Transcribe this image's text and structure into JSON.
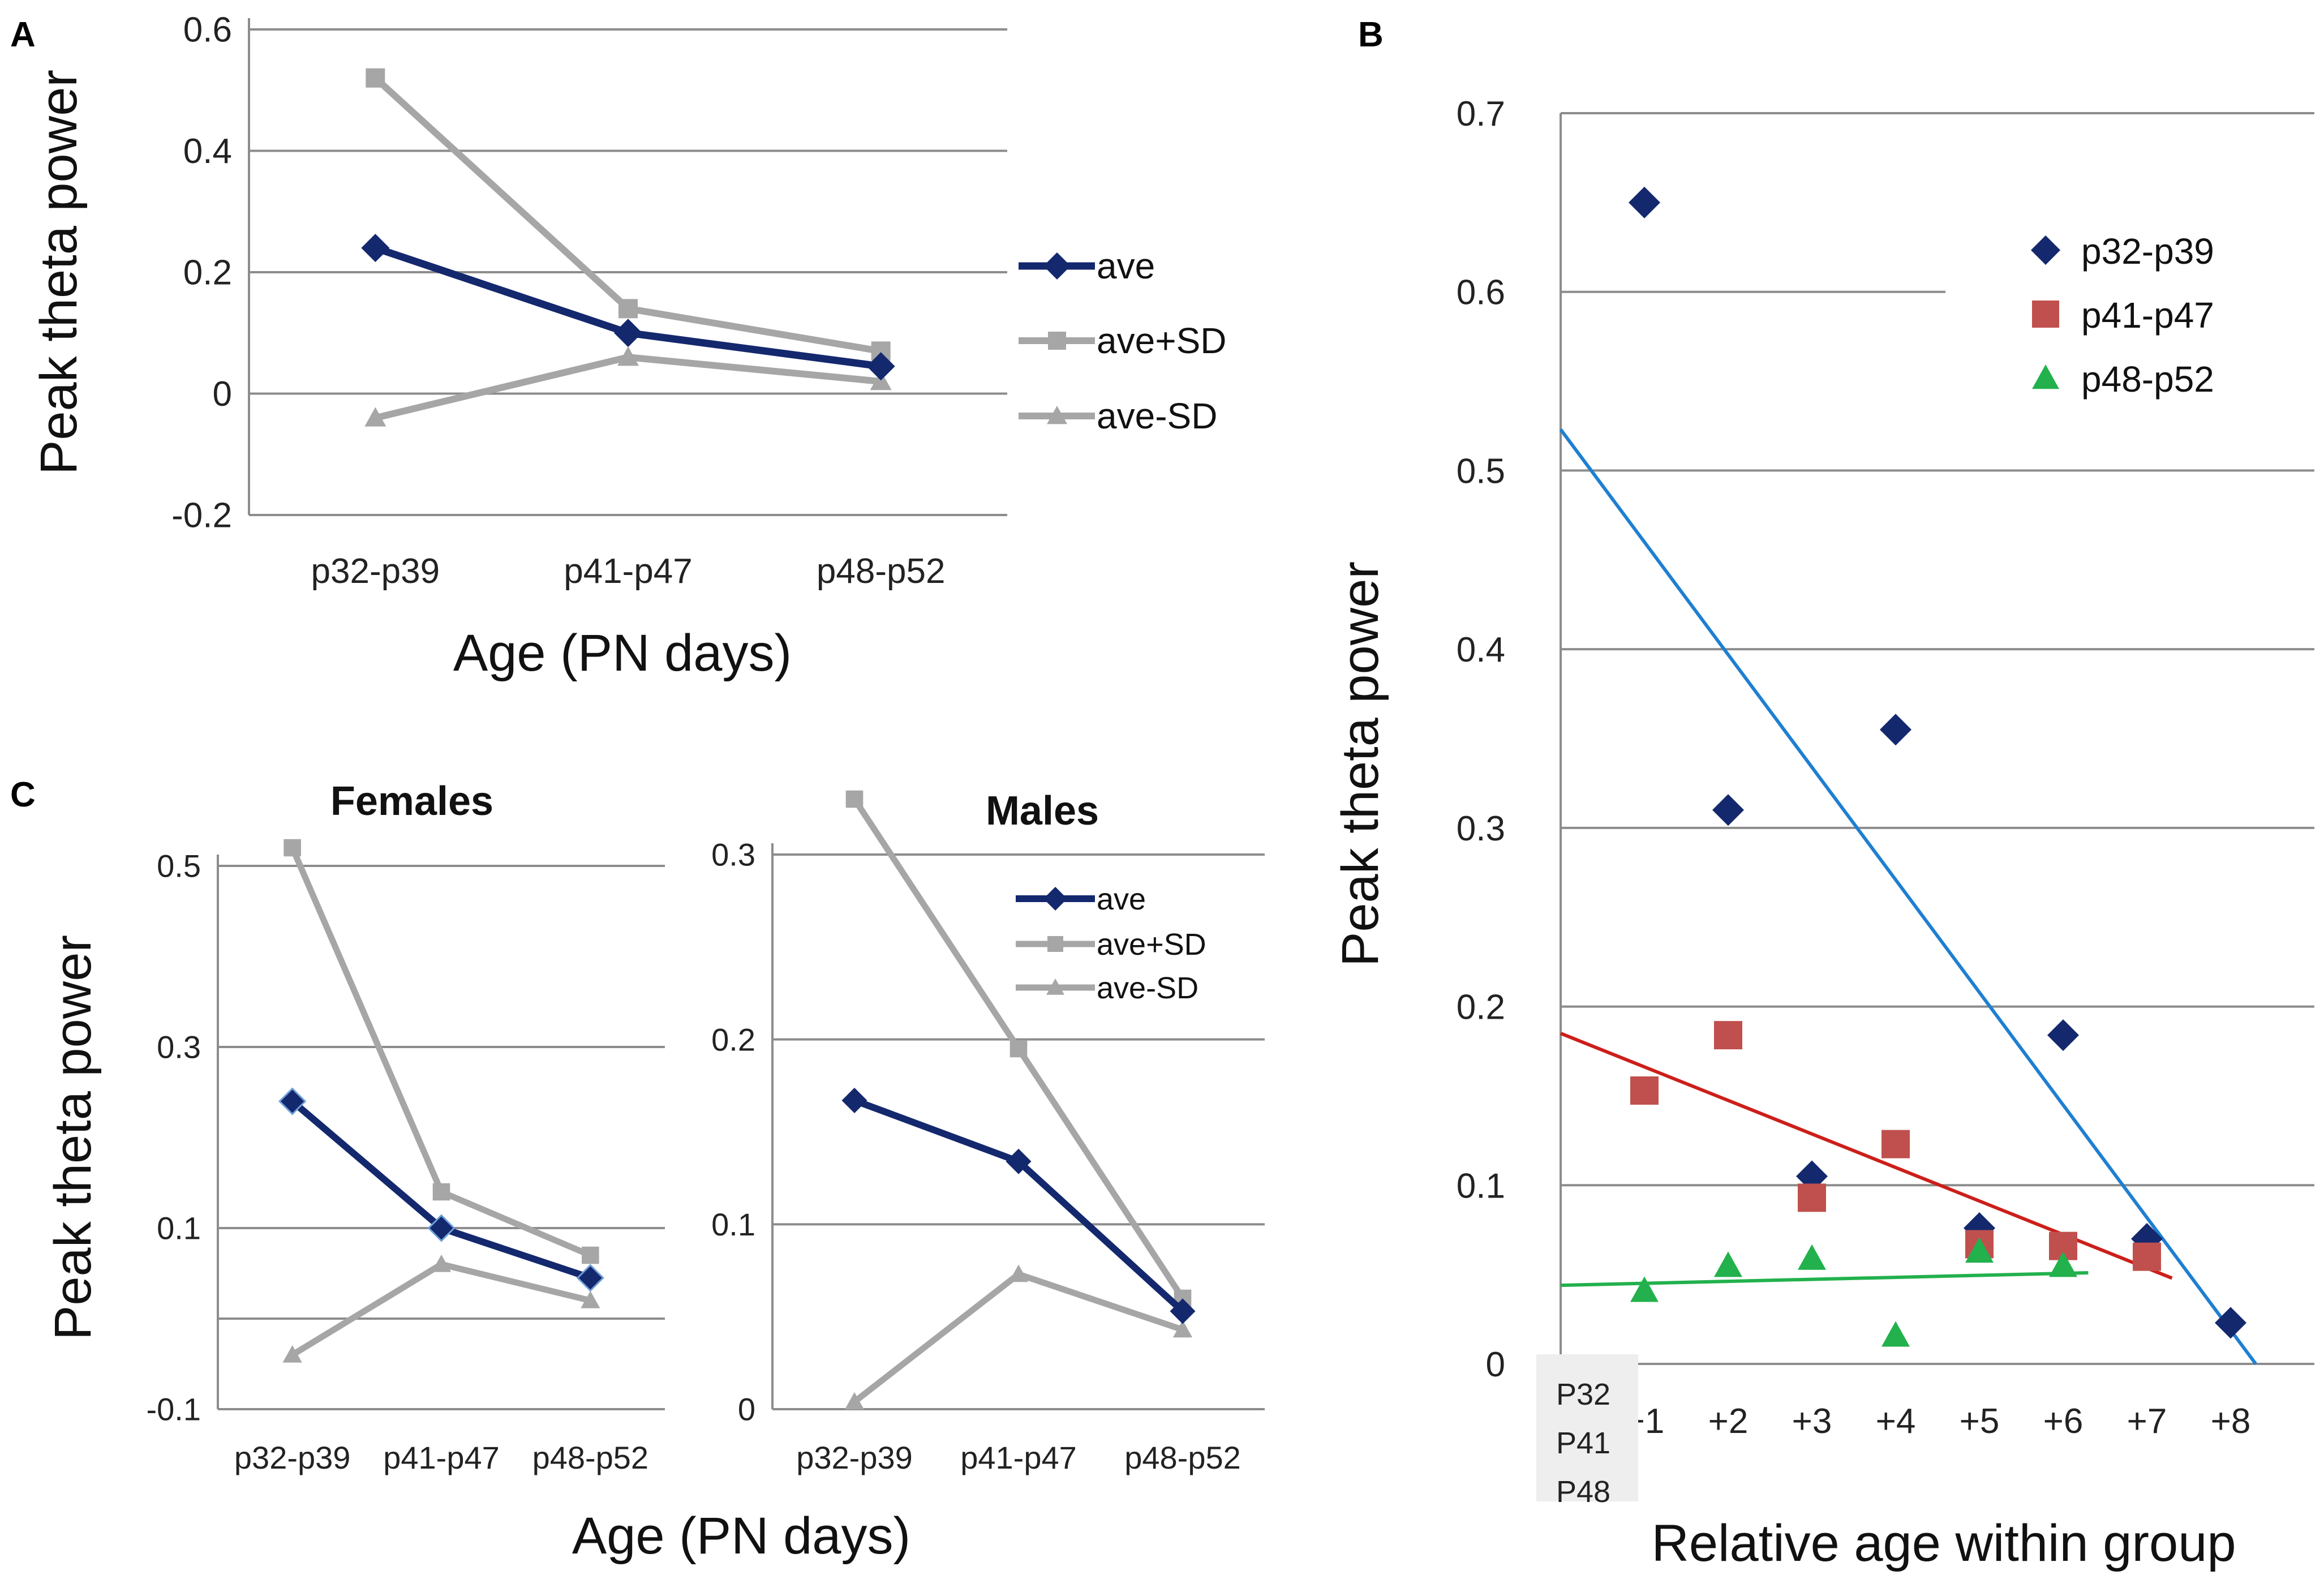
{
  "panels": {
    "a": {
      "letter": "A"
    },
    "b": {
      "letter": "B"
    },
    "c": {
      "letter": "C"
    }
  },
  "colors": {
    "ave": "#14286e",
    "sd": "#a6a6a6",
    "p32": "#14286e",
    "p41": "#c0504d",
    "p48": "#22b14c",
    "trend_p32": "#1f7fd1",
    "trend_p41": "#cc1f1a",
    "trend_p48": "#22b14c",
    "inset_p32": "#1f7fd1",
    "inset_p41": "#b7661a",
    "inset_p48": "#22b14c"
  },
  "chart_data": [
    {
      "id": "A",
      "type": "line",
      "title": "",
      "categories": [
        "p32-p39",
        "p41-p47",
        "p48-p52"
      ],
      "series": [
        {
          "name": "ave",
          "values": [
            0.24,
            0.1,
            0.045
          ]
        },
        {
          "name": "ave+SD",
          "values": [
            0.52,
            0.14,
            0.07
          ]
        },
        {
          "name": "ave-SD",
          "values": [
            -0.04,
            0.06,
            0.02
          ]
        }
      ],
      "xlabel": "Age (PN days)",
      "ylabel": "Peak theta power",
      "ylim": [
        -0.2,
        0.6
      ],
      "yticks": [
        "-0.2",
        "0",
        "0.2",
        "0.4",
        "0.6"
      ],
      "legend": [
        "ave",
        "ave+SD",
        "ave-SD"
      ]
    },
    {
      "id": "C-females",
      "type": "line",
      "title": "Females",
      "categories": [
        "p32-p39",
        "p41-p47",
        "p48-p52"
      ],
      "series": [
        {
          "name": "ave",
          "values": [
            0.24,
            0.1,
            0.045
          ]
        },
        {
          "name": "ave+SD",
          "values": [
            0.52,
            0.14,
            0.07
          ]
        },
        {
          "name": "ave-SD",
          "values": [
            -0.04,
            0.06,
            0.02
          ]
        }
      ],
      "ylabel": "Peak theta power",
      "ylim": [
        -0.1,
        0.5
      ],
      "yticks": [
        "-0.1",
        "0.1",
        "0.3",
        "0.5"
      ]
    },
    {
      "id": "C-males",
      "type": "line",
      "title": "Males",
      "categories": [
        "p32-p39",
        "p41-p47",
        "p48-p52"
      ],
      "series": [
        {
          "name": "ave",
          "values": [
            0.167,
            0.134,
            0.053
          ]
        },
        {
          "name": "ave+SD",
          "values": [
            0.33,
            0.195,
            0.06
          ]
        },
        {
          "name": "ave-SD",
          "values": [
            0.004,
            0.073,
            0.043
          ]
        }
      ],
      "ylim": [
        0,
        0.3
      ],
      "yticks": [
        "0",
        "0.1",
        "0.2",
        "0.3"
      ],
      "legend": [
        "ave",
        "ave+SD",
        "ave-SD"
      ],
      "xlabel": "Age (PN days)"
    },
    {
      "id": "B",
      "type": "scatter",
      "title": "",
      "xlabel": "Relative age within group",
      "ylabel": "Peak theta power",
      "ylim": [
        0,
        0.7
      ],
      "yticks": [
        "0",
        "0.1",
        "0.2",
        "0.3",
        "0.4",
        "0.5",
        "0.6",
        "0.7"
      ],
      "xlim": [
        0,
        9
      ],
      "xticks": [
        "+1",
        "+2",
        "+3",
        "+4",
        "+5",
        "+6",
        "+7",
        "+8"
      ],
      "series": [
        {
          "name": "p32-p39",
          "marker": "diamond",
          "points": [
            [
              1,
              0.65
            ],
            [
              2,
              0.31
            ],
            [
              3,
              0.105
            ],
            [
              4,
              0.355
            ],
            [
              5,
              0.076
            ],
            [
              6,
              0.184
            ],
            [
              7,
              0.07
            ],
            [
              8,
              0.023
            ]
          ]
        },
        {
          "name": "p41-p47",
          "marker": "square",
          "points": [
            [
              1,
              0.153
            ],
            [
              2,
              0.184
            ],
            [
              3,
              0.093
            ],
            [
              4,
              0.123
            ],
            [
              5,
              0.067
            ],
            [
              6,
              0.066
            ],
            [
              7,
              0.06
            ]
          ]
        },
        {
          "name": "p48-p52",
          "marker": "triangle",
          "points": [
            [
              1,
              0.041
            ],
            [
              2,
              0.055
            ],
            [
              3,
              0.059
            ],
            [
              4,
              0.016
            ],
            [
              5,
              0.063
            ],
            [
              6,
              0.055
            ]
          ]
        }
      ],
      "trendlines": [
        {
          "name": "p32-p39",
          "from": [
            0,
            0.523
          ],
          "to": [
            8.3,
            0.0
          ]
        },
        {
          "name": "p41-p47",
          "from": [
            0,
            0.185
          ],
          "to": [
            7.3,
            0.048
          ]
        },
        {
          "name": "p48-p52",
          "from": [
            0,
            0.044
          ],
          "to": [
            6.3,
            0.051
          ]
        }
      ],
      "inset_labels": [
        "P32",
        "P41",
        "P48"
      ],
      "legend": [
        "p32-p39",
        "p41-p47",
        "p48-p52"
      ]
    }
  ]
}
